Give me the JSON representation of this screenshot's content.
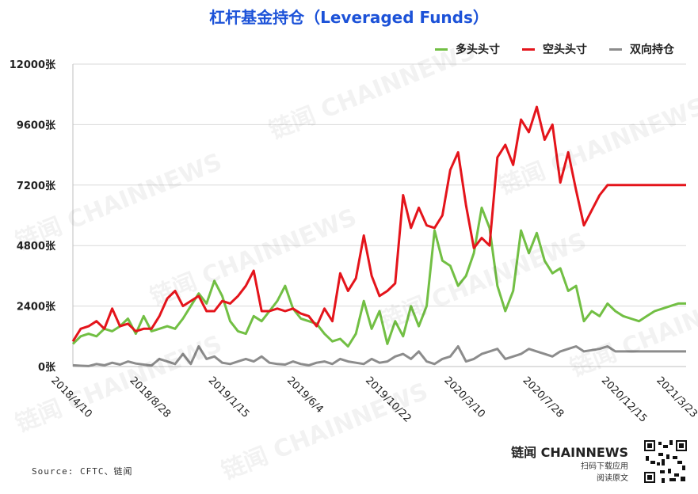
{
  "title": "杠杆基金持仓（Leveraged Funds）",
  "source": "Source: CFTC、链闻",
  "brand": {
    "name": "链闻 CHAINNEWS",
    "line1": "扫码下载应用",
    "line2": "阅读原文"
  },
  "watermark": "链闻 CHAINNEWS",
  "colors": {
    "long": "#72bf44",
    "short": "#e4141b",
    "spread": "#8c8c8c",
    "title": "#1c52d8",
    "grid": "#d9d9d9"
  },
  "chart_data": {
    "type": "line",
    "title": "杠杆基金持仓（Leveraged Funds）",
    "ylim": [
      0,
      12000
    ],
    "y_ticks": [
      0,
      2400,
      4800,
      7200,
      9600,
      12000
    ],
    "y_tick_labels": [
      "0张",
      "2400张",
      "4800张",
      "7200张",
      "9600张",
      "12000张"
    ],
    "x_ticks": [
      "2018/4/10",
      "2018/8/28",
      "2019/1/15",
      "2019/6/4",
      "2019/10/22",
      "2020/3/10",
      "2020/7/28",
      "2020/12/15",
      "2021/3/23"
    ],
    "x": [
      "2018/4/10",
      "2018/4/24",
      "2018/5/8",
      "2018/5/22",
      "2018/6/5",
      "2018/6/19",
      "2018/7/3",
      "2018/7/17",
      "2018/7/31",
      "2018/8/14",
      "2018/8/28",
      "2018/9/11",
      "2018/9/25",
      "2018/10/9",
      "2018/10/23",
      "2018/11/6",
      "2018/11/20",
      "2018/12/4",
      "2018/12/18",
      "2019/1/1",
      "2019/1/15",
      "2019/1/29",
      "2019/2/12",
      "2019/2/26",
      "2019/3/12",
      "2019/3/26",
      "2019/4/9",
      "2019/4/23",
      "2019/5/7",
      "2019/5/21",
      "2019/6/4",
      "2019/6/18",
      "2019/7/2",
      "2019/7/16",
      "2019/7/30",
      "2019/8/13",
      "2019/8/27",
      "2019/9/10",
      "2019/9/24",
      "2019/10/8",
      "2019/10/22",
      "2019/11/5",
      "2019/11/19",
      "2019/12/3",
      "2019/12/17",
      "2019/12/31",
      "2020/1/14",
      "2020/1/28",
      "2020/2/11",
      "2020/2/25",
      "2020/3/10",
      "2020/3/24",
      "2020/4/7",
      "2020/4/21",
      "2020/5/5",
      "2020/5/19",
      "2020/6/2",
      "2020/6/16",
      "2020/6/30",
      "2020/7/14",
      "2020/7/28",
      "2020/8/11",
      "2020/8/25",
      "2020/9/8",
      "2020/9/22",
      "2020/10/6",
      "2020/10/20",
      "2020/11/3",
      "2020/11/17",
      "2020/12/1",
      "2020/12/15",
      "2020/12/29",
      "2021/1/12",
      "2021/1/26",
      "2021/2/9",
      "2021/2/23",
      "2021/3/9",
      "2021/3/23",
      "2021/4/6"
    ],
    "series": [
      {
        "name": "多头头寸",
        "color": "#72bf44",
        "values": [
          900,
          1200,
          1300,
          1200,
          1500,
          1400,
          1600,
          1900,
          1300,
          2000,
          1400,
          1500,
          1600,
          1500,
          1900,
          2400,
          2900,
          2500,
          3400,
          2800,
          1800,
          1400,
          1300,
          2000,
          1800,
          2200,
          2600,
          3200,
          2300,
          1900,
          1800,
          1700,
          1300,
          1000,
          1100,
          800,
          1300,
          2600,
          1500,
          2200,
          900,
          1800,
          1200,
          2400,
          1600,
          2400,
          5400,
          4200,
          4000,
          3200,
          3600,
          4500,
          6300,
          5500,
          3200,
          2200,
          3000,
          5400,
          4500,
          5300,
          4200,
          3700,
          3900,
          3000,
          3200,
          1800,
          2200,
          2000,
          2500,
          2200,
          2000,
          1900,
          1800,
          2000,
          2200,
          2300,
          2400,
          2500,
          2500
        ]
      },
      {
        "name": "空头头寸",
        "color": "#e4141b",
        "values": [
          1000,
          1500,
          1600,
          1800,
          1500,
          2300,
          1600,
          1700,
          1400,
          1500,
          1500,
          2000,
          2700,
          3000,
          2400,
          2600,
          2800,
          2200,
          2200,
          2600,
          2500,
          2800,
          3200,
          3800,
          2200,
          2200,
          2300,
          2200,
          2300,
          2100,
          2000,
          1600,
          2300,
          1800,
          3700,
          3000,
          3500,
          5200,
          3600,
          2800,
          3000,
          3300,
          6800,
          5500,
          6300,
          5600,
          5500,
          6000,
          7800,
          8500,
          6400,
          4700,
          5100,
          4800,
          8300,
          8800,
          8000,
          9800,
          9300,
          10300,
          9000,
          9600,
          7300,
          8500,
          7000,
          5600,
          6200,
          6800,
          7200,
          7200,
          7200,
          7200,
          7200,
          7200,
          7200,
          7200,
          7200,
          7200,
          7200
        ]
      },
      {
        "name": "双向持仓",
        "color": "#8c8c8c",
        "values": [
          50,
          30,
          20,
          100,
          50,
          150,
          80,
          200,
          120,
          80,
          40,
          300,
          200,
          100,
          500,
          100,
          800,
          300,
          400,
          150,
          100,
          200,
          300,
          200,
          400,
          150,
          100,
          80,
          200,
          100,
          50,
          150,
          200,
          100,
          300,
          200,
          150,
          100,
          300,
          150,
          200,
          400,
          500,
          300,
          600,
          200,
          100,
          300,
          400,
          800,
          200,
          300,
          500,
          600,
          700,
          300,
          400,
          500,
          700,
          600,
          500,
          400,
          600,
          700,
          800,
          600,
          650,
          700,
          800,
          600,
          600,
          600,
          600,
          600,
          600,
          600,
          600,
          600,
          600
        ]
      }
    ]
  }
}
